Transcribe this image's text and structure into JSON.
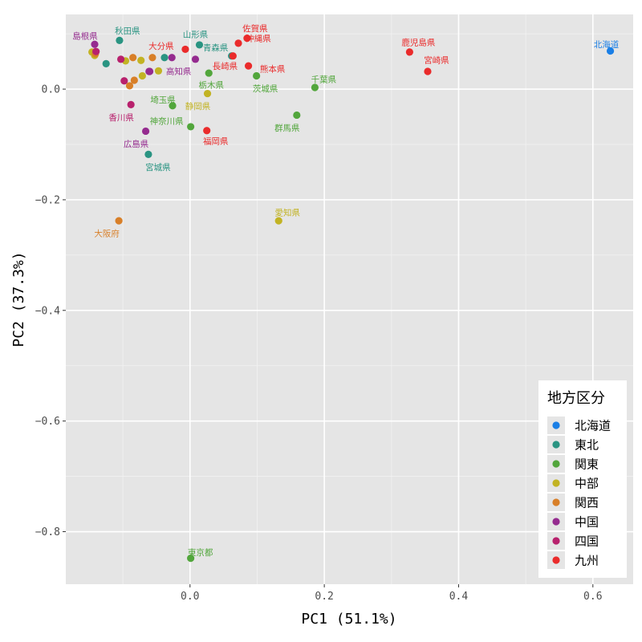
{
  "chart_data": {
    "type": "scatter",
    "xlabel": "PC1 (51.1%)",
    "ylabel": "PC2 (37.3%)",
    "xlim": [
      -0.185,
      0.66
    ],
    "ylim": [
      -0.895,
      0.135
    ],
    "x_ticks": [
      0.0,
      0.2,
      0.4,
      0.6
    ],
    "x_tick_labels": [
      "0.0",
      "0.2",
      "0.4",
      "0.6"
    ],
    "y_ticks": [
      0.0,
      -0.2,
      -0.4,
      -0.6,
      -0.8
    ],
    "y_tick_labels": [
      "0.0",
      "−0.2",
      "−0.4",
      "−0.6",
      "−0.8"
    ],
    "grid": true,
    "legend": {
      "title": "地方区分",
      "position": "bottom-right",
      "entries": [
        {
          "name": "北海道",
          "color": "#1a7fe6"
        },
        {
          "name": "東北",
          "color": "#2a9482"
        },
        {
          "name": "関東",
          "color": "#52a63c"
        },
        {
          "name": "中部",
          "color": "#c2b323"
        },
        {
          "name": "関西",
          "color": "#d87f28"
        },
        {
          "name": "中国",
          "color": "#952b8f"
        },
        {
          "name": "四国",
          "color": "#b8216d"
        },
        {
          "name": "九州",
          "color": "#ea2b2b"
        }
      ]
    },
    "points": [
      {
        "region": "北海道",
        "x": 0.626,
        "y": 0.069,
        "label": "北海道",
        "label_dx": -5,
        "label_dy": -8
      },
      {
        "region": "東北",
        "x": -0.105,
        "y": 0.088,
        "label": "秋田県",
        "label_dx": 10,
        "label_dy": -12
      },
      {
        "region": "東北",
        "x": 0.014,
        "y": 0.08,
        "label": "山形県",
        "label_dx": -5,
        "label_dy": -13
      },
      {
        "region": "東北",
        "x": 0.062,
        "y": 0.06,
        "label": "青森県",
        "label_dx": -20,
        "label_dy": -10
      },
      {
        "region": "東北",
        "x": -0.062,
        "y": -0.118,
        "label": "宮城県",
        "label_dx": 12,
        "label_dy": 16
      },
      {
        "region": "東北",
        "x": -0.125,
        "y": 0.046,
        "label": ""
      },
      {
        "region": "東北",
        "x": -0.038,
        "y": 0.057,
        "label": ""
      },
      {
        "region": "関東",
        "x": 0.099,
        "y": 0.024,
        "label": "茨城県",
        "label_dx": 11,
        "label_dy": 16
      },
      {
        "region": "関東",
        "x": 0.186,
        "y": 0.003,
        "label": "千葉県",
        "label_dx": 11,
        "label_dy": -10
      },
      {
        "region": "関東",
        "x": 0.159,
        "y": -0.047,
        "label": "群馬県",
        "label_dx": -12,
        "label_dy": 16
      },
      {
        "region": "関東",
        "x": 0.028,
        "y": 0.029,
        "label": "栃木県",
        "label_dx": 3,
        "label_dy": 15
      },
      {
        "region": "関東",
        "x": -0.026,
        "y": -0.03,
        "label": "埼玉県",
        "label_dx": -12,
        "label_dy": -7
      },
      {
        "region": "関東",
        "x": 0.001,
        "y": -0.068,
        "label": "神奈川県",
        "label_dx": -30,
        "label_dy": -7
      },
      {
        "region": "関東",
        "x": 0.001,
        "y": -0.848,
        "label": "東京都",
        "label_dx": 12,
        "label_dy": -7
      },
      {
        "region": "中部",
        "x": 0.132,
        "y": -0.238,
        "label": "愛知県",
        "label_dx": 11,
        "label_dy": -10
      },
      {
        "region": "中部",
        "x": 0.026,
        "y": -0.008,
        "label": "静岡県",
        "label_dx": -12,
        "label_dy": 16
      },
      {
        "region": "中部",
        "x": -0.146,
        "y": 0.067,
        "label": ""
      },
      {
        "region": "中部",
        "x": -0.096,
        "y": 0.051,
        "label": ""
      },
      {
        "region": "中部",
        "x": -0.073,
        "y": 0.052,
        "label": ""
      },
      {
        "region": "中部",
        "x": -0.071,
        "y": 0.024,
        "label": ""
      },
      {
        "region": "中部",
        "x": -0.047,
        "y": 0.033,
        "label": ""
      },
      {
        "region": "中部",
        "x": -0.142,
        "y": 0.061,
        "label": ""
      },
      {
        "region": "関西",
        "x": -0.106,
        "y": -0.238,
        "label": "大阪府",
        "label_dx": -15,
        "label_dy": 16
      },
      {
        "region": "関西",
        "x": -0.085,
        "y": 0.057,
        "label": ""
      },
      {
        "region": "関西",
        "x": -0.056,
        "y": 0.057,
        "label": ""
      },
      {
        "region": "関西",
        "x": -0.083,
        "y": 0.016,
        "label": ""
      },
      {
        "region": "関西",
        "x": -0.09,
        "y": 0.006,
        "label": ""
      },
      {
        "region": "関西",
        "x": -0.141,
        "y": 0.064,
        "label": ""
      },
      {
        "region": "中国",
        "x": -0.142,
        "y": 0.081,
        "label": "島根県",
        "label_dx": -12,
        "label_dy": -10
      },
      {
        "region": "中国",
        "x": -0.066,
        "y": -0.076,
        "label": "広島県",
        "label_dx": -12,
        "label_dy": 16
      },
      {
        "region": "中国",
        "x": -0.027,
        "y": 0.057,
        "label": ""
      },
      {
        "region": "中国",
        "x": -0.061,
        "y": 0.032,
        "label": ""
      },
      {
        "region": "中国",
        "x": 0.008,
        "y": 0.054,
        "label": ""
      },
      {
        "region": "四国",
        "x": -0.088,
        "y": -0.028,
        "label": "香川県",
        "label_dx": -12,
        "label_dy": 16
      },
      {
        "region": "四国",
        "x": -0.103,
        "y": 0.054,
        "label": ""
      },
      {
        "region": "四国",
        "x": -0.098,
        "y": 0.015,
        "label": ""
      },
      {
        "region": "四国",
        "x": -0.14,
        "y": 0.068,
        "label": ""
      },
      {
        "region": "九州",
        "x": 0.085,
        "y": 0.092,
        "label": "佐賀県",
        "label_dx": 10,
        "label_dy": -12
      },
      {
        "region": "九州",
        "x": -0.007,
        "y": 0.072,
        "label": "大分県",
        "label_dx": -30,
        "label_dy": -4
      },
      {
        "region": "九州",
        "x": 0.072,
        "y": 0.083,
        "label": "沖縄県",
        "label_dx": 25,
        "label_dy": -6
      },
      {
        "region": "九州",
        "x": 0.087,
        "y": 0.042,
        "label": "熊本県",
        "label_dx": 30,
        "label_dy": 4
      },
      {
        "region": "九州",
        "x": 0.064,
        "y": 0.06,
        "label": "長崎県",
        "label_dx": -10,
        "label_dy": 13
      },
      {
        "region": "九州",
        "x": 0.025,
        "y": -0.075,
        "label": "福岡県",
        "label_dx": 11,
        "label_dy": 13
      },
      {
        "region": "九州",
        "x": 0.327,
        "y": 0.067,
        "label": "鹿児島県",
        "label_dx": 11,
        "label_dy": -12
      },
      {
        "region": "九州",
        "x": 0.354,
        "y": 0.032,
        "label": "宮崎県",
        "label_dx": 11,
        "label_dy": -14
      },
      {
        "region": "中国",
        "x": -0.06,
        "y": 0.032,
        "label": "高知県",
        "label_dx": 36,
        "label_dy": 0
      }
    ]
  }
}
